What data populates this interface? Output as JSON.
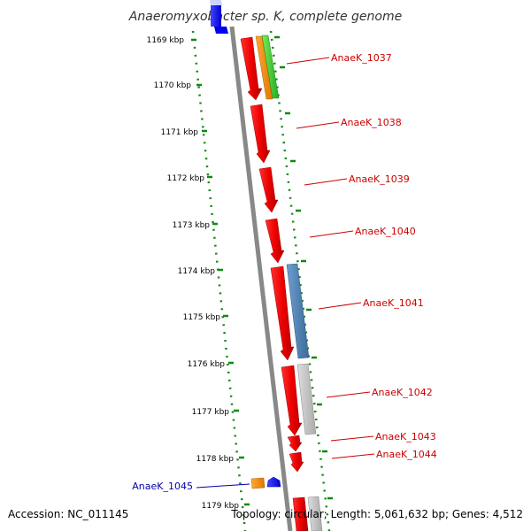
{
  "title": "Anaeromyxobacter sp. K, complete genome",
  "footer": {
    "accession": "Accession: NC_011145",
    "stats": "Topology: circular; Length: 5,061,632 bp; Genes: 4,512"
  },
  "scale_labels": [
    "1169 kbp",
    "1170 kbp",
    "1171 kbp",
    "1172 kbp",
    "1173 kbp",
    "1174 kbp",
    "1175 kbp",
    "1176 kbp",
    "1177 kbp",
    "1178 kbp",
    "1179 kbp"
  ],
  "gene_labels": [
    {
      "id": "AnaeK_1037",
      "color": "#cc0000"
    },
    {
      "id": "AnaeK_1038",
      "color": "#cc0000"
    },
    {
      "id": "AnaeK_1039",
      "color": "#cc0000"
    },
    {
      "id": "AnaeK_1040",
      "color": "#cc0000"
    },
    {
      "id": "AnaeK_1041",
      "color": "#cc0000"
    },
    {
      "id": "AnaeK_1042",
      "color": "#cc0000"
    },
    {
      "id": "AnaeK_1043",
      "color": "#cc0000"
    },
    {
      "id": "AnaeK_1044",
      "color": "#cc0000"
    },
    {
      "id": "AnaeK_1045",
      "color": "#0000aa"
    }
  ],
  "colors": {
    "strand_forward": "#ee1111",
    "orange": "#ee8800",
    "green": "#33cc33",
    "steelblue": "#4477aa",
    "grey": "#bbbbbb",
    "blue": "#0000ff",
    "dotted": "#118811",
    "backbone": "#888888"
  }
}
